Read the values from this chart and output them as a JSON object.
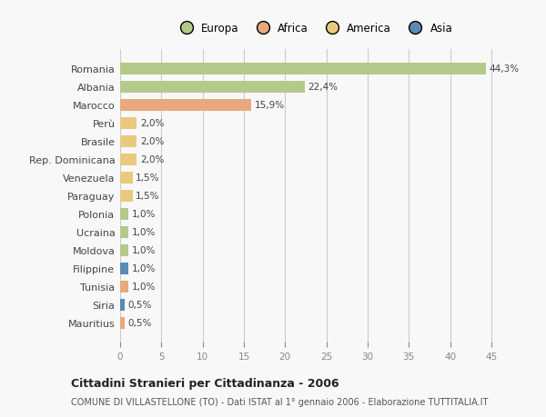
{
  "categories": [
    "Romania",
    "Albania",
    "Marocco",
    "Perù",
    "Brasile",
    "Rep. Dominicana",
    "Venezuela",
    "Paraguay",
    "Polonia",
    "Ucraina",
    "Moldova",
    "Filippine",
    "Tunisia",
    "Siria",
    "Mauritius"
  ],
  "values": [
    44.3,
    22.4,
    15.9,
    2.0,
    2.0,
    2.0,
    1.5,
    1.5,
    1.0,
    1.0,
    1.0,
    1.0,
    1.0,
    0.5,
    0.5
  ],
  "colors": [
    "#b5c98a",
    "#b5c98a",
    "#e8a97e",
    "#e8c97e",
    "#e8c97e",
    "#e8c97e",
    "#e8c97e",
    "#e8c97e",
    "#b5c98a",
    "#b5c98a",
    "#b5c98a",
    "#5b8ab5",
    "#e8a97e",
    "#5b8ab5",
    "#e8a97e"
  ],
  "labels": [
    "44,3%",
    "22,4%",
    "15,9%",
    "2,0%",
    "2,0%",
    "2,0%",
    "1,5%",
    "1,5%",
    "1,0%",
    "1,0%",
    "1,0%",
    "1,0%",
    "1,0%",
    "0,5%",
    "0,5%"
  ],
  "legend_names": [
    "Europa",
    "Africa",
    "America",
    "Asia"
  ],
  "legend_colors": [
    "#b5c98a",
    "#e8a97e",
    "#e8c97e",
    "#5b8ab5"
  ],
  "title": "Cittadini Stranieri per Cittadinanza - 2006",
  "subtitle": "COMUNE DI VILLASTELLONE (TO) - Dati ISTAT al 1° gennaio 2006 - Elaborazione TUTTITALIA.IT",
  "xlim": [
    0,
    47
  ],
  "xticks": [
    0,
    5,
    10,
    15,
    20,
    25,
    30,
    35,
    40,
    45
  ],
  "bg_color": "#f8f8f8",
  "grid_color": "#cccccc",
  "bar_height": 0.65
}
